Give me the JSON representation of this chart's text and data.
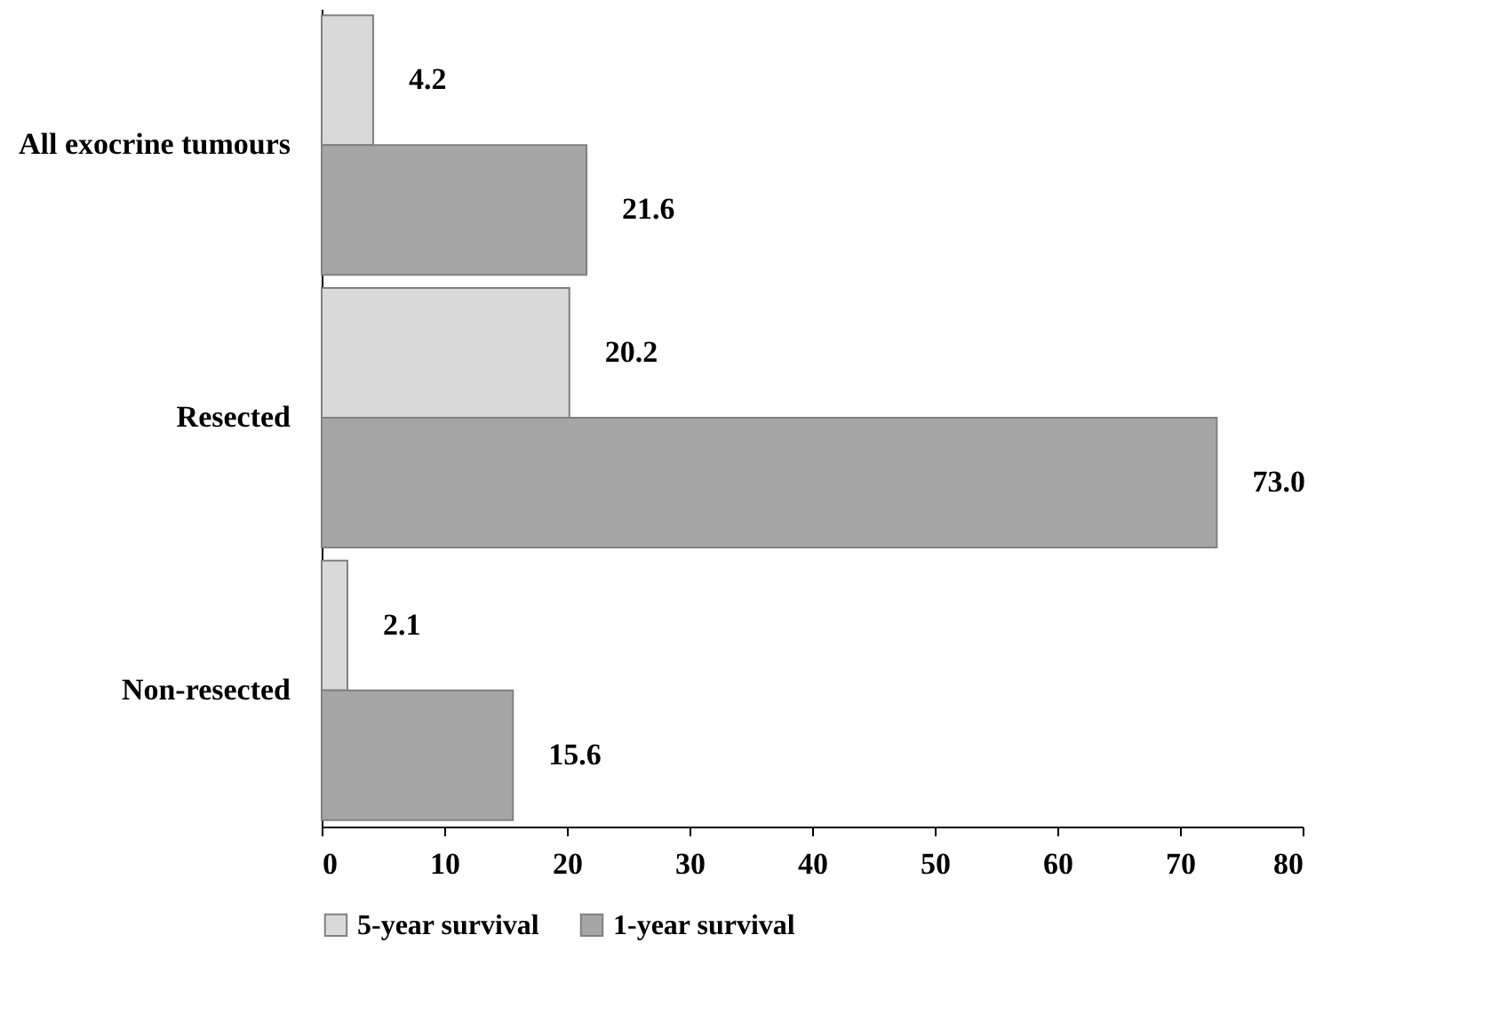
{
  "chart_data": {
    "type": "bar",
    "orientation": "horizontal",
    "categories": [
      "All exocrine tumours",
      "Resected",
      "Non-resected"
    ],
    "series": [
      {
        "name": "5-year survival",
        "color": "#d9d9d9",
        "values": [
          4.2,
          20.2,
          2.1
        ],
        "value_labels": [
          "4.2",
          "20.2",
          "2.1"
        ]
      },
      {
        "name": "1-year survival",
        "color": "#a6a6a6",
        "values": [
          21.6,
          73.0,
          15.6
        ],
        "value_labels": [
          "21.6",
          "73.0",
          "15.6"
        ]
      }
    ],
    "xlim": [
      0,
      80
    ],
    "xticks": [
      0,
      10,
      20,
      30,
      40,
      50,
      60,
      70,
      80
    ],
    "grid": false,
    "legend": "bottom"
  }
}
